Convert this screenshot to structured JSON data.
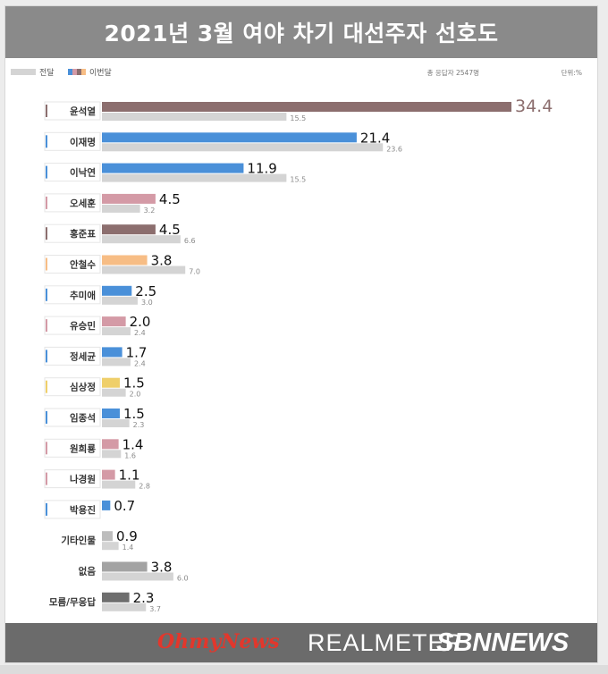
{
  "header": {
    "title": "2021년 3월 여야 차기 대선주자 선호도"
  },
  "legend": {
    "prev_label": "전달",
    "curr_label": "이번달",
    "note_respondents": "총 응답자 2547명",
    "note_unit": "단위:%"
  },
  "colors": {
    "prev": "#d4d4d4",
    "brown": "#8c6e6e",
    "blue": "#4a90d9",
    "pink": "#d49aa6",
    "orange": "#f7bd85",
    "yellow": "#efcf6a",
    "gray": "#bdbdbd",
    "mid_gray": "#a3a3a3",
    "dark_gray": "#6e6e6e"
  },
  "chart_data": {
    "type": "bar",
    "orientation": "horizontal",
    "title": "2021년 3월 여야 차기 대선주자 선호도",
    "unit": "%",
    "categories": [
      "윤석열",
      "이재명",
      "이낙연",
      "오세훈",
      "홍준표",
      "안철수",
      "추미애",
      "유승민",
      "정세균",
      "심상정",
      "임종석",
      "원희룡",
      "나경원",
      "박용진",
      "기타인물",
      "없음",
      "모름/무응답"
    ],
    "series": [
      {
        "name": "이번달",
        "values": [
          34.4,
          21.4,
          11.9,
          4.5,
          4.5,
          3.8,
          2.5,
          2.0,
          1.7,
          1.5,
          1.5,
          1.4,
          1.1,
          0.7,
          0.9,
          3.8,
          2.3
        ]
      },
      {
        "name": "전달",
        "values": [
          15.5,
          23.6,
          15.5,
          3.2,
          6.6,
          7.0,
          3.0,
          2.4,
          2.4,
          2.0,
          2.3,
          1.6,
          2.8,
          null,
          1.4,
          6.0,
          3.7
        ]
      }
    ],
    "bar_colors": [
      "brown",
      "blue",
      "blue",
      "pink",
      "brown",
      "orange",
      "blue",
      "pink",
      "blue",
      "yellow",
      "blue",
      "pink",
      "pink",
      "blue",
      "gray",
      "mid_gray",
      "dark_gray"
    ],
    "marker_colors": [
      "brown",
      "blue",
      "blue",
      "pink",
      "brown",
      "orange",
      "blue",
      "pink",
      "blue",
      "yellow",
      "blue",
      "pink",
      "pink",
      "blue",
      null,
      null,
      null
    ],
    "xlim": [
      0,
      34.4
    ],
    "grid": false,
    "legend_position": "top-left"
  },
  "footer": {
    "logo_ohmynews": "OhmyNews",
    "logo_realmeter": "REALMETER",
    "logo_sbnnews": "SBNNEWS"
  }
}
